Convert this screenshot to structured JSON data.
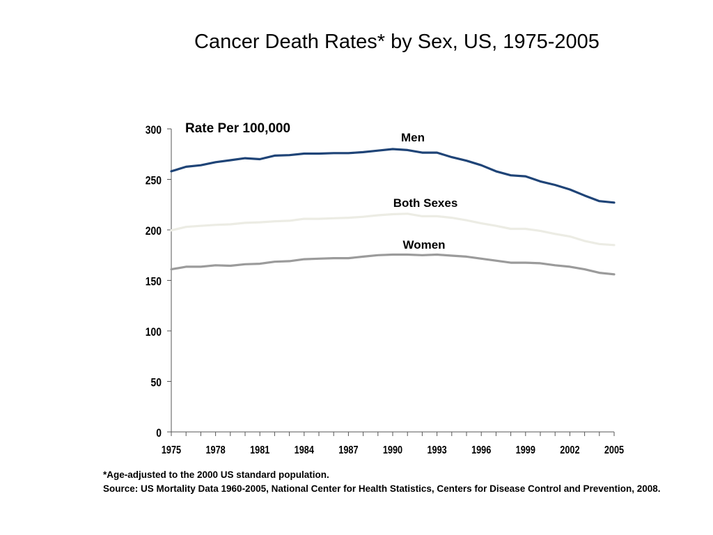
{
  "title": "Cancer Death Rates* by Sex, US, 1975-2005",
  "footnote": {
    "line1": "*Age-adjusted to the 2000 US standard population.",
    "line2": "Source: US Mortality Data 1960-2005, National Center for Health Statistics, Centers for Disease Control and Prevention, 2008."
  },
  "chart_data": {
    "type": "line",
    "ylabel": "Rate Per 100,000",
    "ylim": [
      0,
      300
    ],
    "yticks": [
      0,
      50,
      100,
      150,
      200,
      250,
      300
    ],
    "xlim": [
      1975,
      2005
    ],
    "xticks": [
      1975,
      1978,
      1981,
      1984,
      1987,
      1990,
      1993,
      1996,
      1999,
      2002,
      2005
    ],
    "grid": false,
    "x": [
      1975,
      1976,
      1977,
      1978,
      1979,
      1980,
      1981,
      1982,
      1983,
      1984,
      1985,
      1986,
      1987,
      1988,
      1989,
      1990,
      1991,
      1992,
      1993,
      1994,
      1995,
      1996,
      1997,
      1998,
      1999,
      2000,
      2001,
      2002,
      2003,
      2004,
      2005
    ],
    "series": [
      {
        "name": "Men",
        "color": "#1f4477",
        "values": [
          258,
          262.5,
          264,
          267,
          269,
          271,
          270,
          273.5,
          274,
          275.5,
          275.5,
          276,
          276,
          277,
          278.5,
          280,
          279,
          276.5,
          276.5,
          272,
          268.5,
          264,
          258,
          254,
          253,
          248,
          244.5,
          240,
          234,
          228.5,
          227
        ]
      },
      {
        "name": "Both Sexes",
        "color": "#ecece4",
        "values": [
          199.5,
          203,
          204,
          205,
          205.5,
          207,
          207.5,
          208.5,
          209,
          211,
          211,
          211.5,
          212,
          213,
          214.5,
          215.5,
          216,
          213.5,
          213.5,
          212,
          209.5,
          206.5,
          204,
          201,
          201,
          199,
          196,
          193.5,
          189,
          186,
          185
        ]
      },
      {
        "name": "Women",
        "color": "#9b9b9b",
        "values": [
          161,
          163.5,
          163.5,
          165,
          164.5,
          166,
          166.5,
          168.5,
          169,
          171,
          171.5,
          172,
          172,
          173.5,
          175,
          175.5,
          175.5,
          175,
          175.5,
          174.5,
          173.5,
          171.5,
          169.5,
          167.5,
          167.5,
          167,
          165,
          163.5,
          161,
          157.5,
          156
        ]
      }
    ]
  }
}
